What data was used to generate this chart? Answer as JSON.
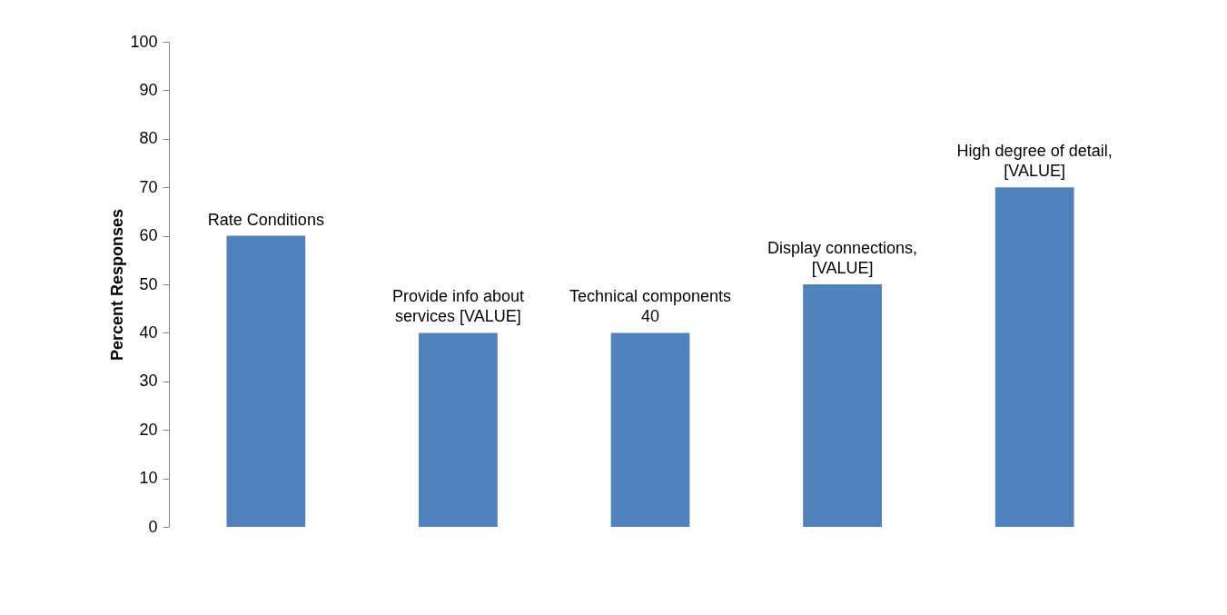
{
  "chart_data": {
    "type": "bar",
    "ylabel": "Percent Responses",
    "categories": [
      null,
      null,
      null,
      null,
      null
    ],
    "values": [
      60,
      40,
      40,
      50,
      70
    ],
    "value_labels": [
      "Rate Conditions",
      "Provide info about\nservices [VALUE]",
      "Technical components\n40",
      "Display connections,\n[VALUE]",
      "High degree of detail,\n[VALUE]"
    ],
    "color": "#4f81bd",
    "ylim": [
      0,
      100
    ],
    "yticks": [
      0,
      10,
      20,
      30,
      40,
      50,
      60,
      70,
      80,
      90,
      100
    ],
    "tick_labels": "y"
  }
}
